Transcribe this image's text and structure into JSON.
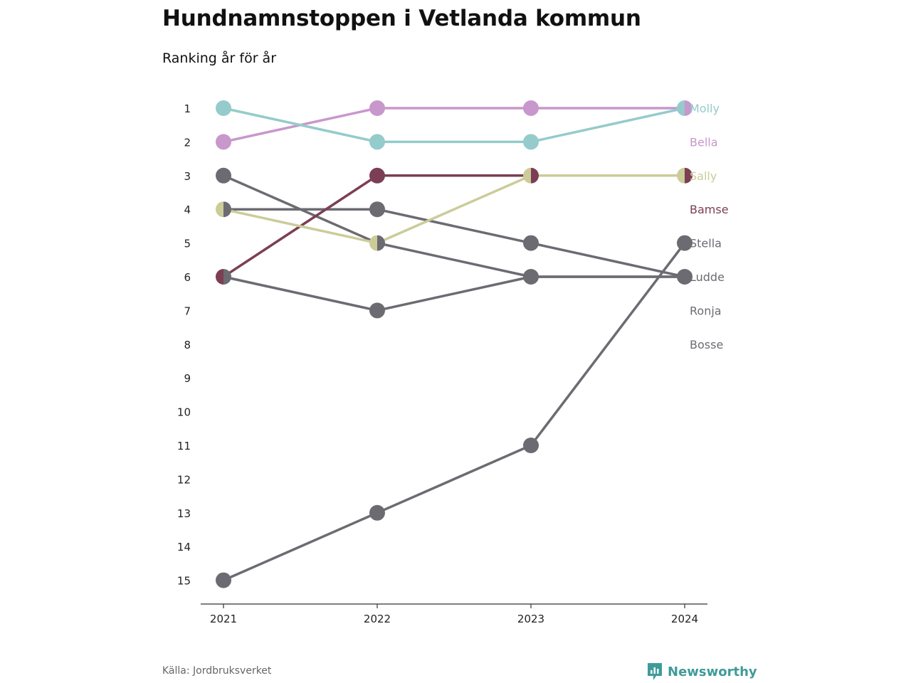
{
  "header": {
    "title": "Hundnamnstoppen i Vetlanda kommun",
    "subtitle": "Ranking år för år"
  },
  "footer": {
    "source": "Källa: Jordbruksverket",
    "brand": "Newsworthy",
    "brand_color": "#3f9b98"
  },
  "chart_data": {
    "type": "line",
    "subtype": "bump",
    "x": [
      "2021",
      "2022",
      "2023",
      "2024"
    ],
    "y_ticks": [
      1,
      2,
      3,
      4,
      5,
      6,
      7,
      8,
      9,
      10,
      11,
      12,
      13,
      14,
      15
    ],
    "y_reversed": true,
    "ylim": [
      1,
      15
    ],
    "grid": false,
    "legend": "right-labels",
    "series": [
      {
        "name": "Molly",
        "color": "#95cbcb",
        "values": [
          1,
          2,
          2,
          1
        ]
      },
      {
        "name": "Bella",
        "color": "#c897cc",
        "values": [
          2,
          1,
          1,
          1
        ]
      },
      {
        "name": "Sally",
        "color": "#cbcc99",
        "values": [
          4,
          5,
          3,
          3
        ]
      },
      {
        "name": "Bamse",
        "color": "#7c3e54",
        "values": [
          6,
          3,
          3,
          3
        ]
      },
      {
        "name": "Stella",
        "color": "#6c6b72",
        "values": [
          15,
          13,
          11,
          5
        ]
      },
      {
        "name": "Ludde",
        "color": "#6c6b72",
        "values": [
          3,
          5,
          6,
          6
        ]
      },
      {
        "name": "Ronja",
        "color": "#6c6b72",
        "values": [
          4,
          4,
          5,
          6
        ]
      },
      {
        "name": "Bosse",
        "color": "#6c6b72",
        "values": [
          6,
          7,
          6,
          6
        ]
      }
    ]
  }
}
